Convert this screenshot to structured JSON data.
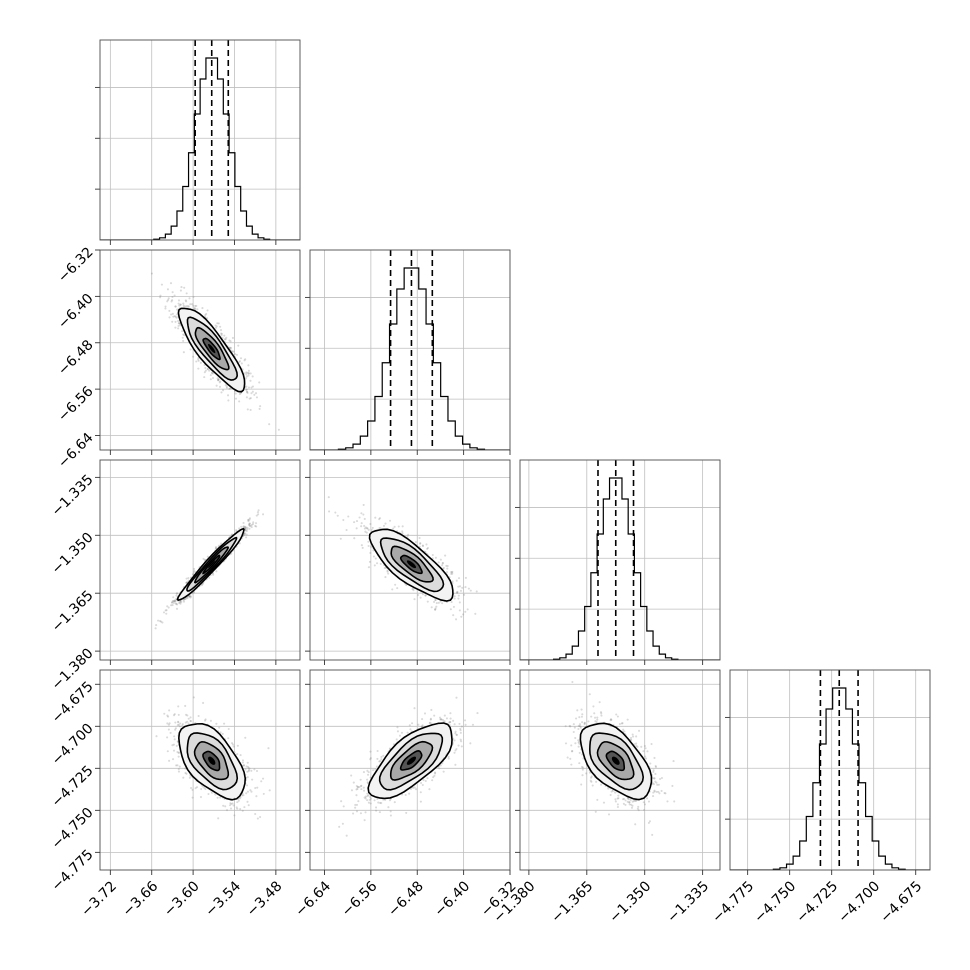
{
  "chart_data": {
    "type": "corner",
    "title": "",
    "dims": [
      {
        "label": "",
        "center": -3.573,
        "sigma": 0.024,
        "range": [
          -3.735,
          -3.445
        ],
        "ticks": [
          -3.72,
          -3.66,
          -3.6,
          -3.54,
          -3.48
        ],
        "tick_labels": [
          "−3.72",
          "−3.66",
          "−3.60",
          "−3.54",
          "−3.48"
        ],
        "quantiles": [
          -3.597,
          -3.573,
          -3.549
        ]
      },
      {
        "label": "",
        "center": -6.49,
        "sigma": 0.036,
        "range": [
          -6.665,
          -6.32
        ],
        "ticks": [
          -6.64,
          -6.56,
          -6.48,
          -6.4,
          -6.32
        ],
        "tick_labels": [
          "−6.64",
          "−6.56",
          "−6.48",
          "−6.40",
          "−6.32"
        ],
        "quantiles": [
          -6.526,
          -6.49,
          -6.454
        ]
      },
      {
        "label": "",
        "center": -1.3575,
        "sigma": 0.0046,
        "range": [
          -1.3823,
          -1.3305
        ],
        "ticks": [
          -1.38,
          -1.365,
          -1.35,
          -1.335
        ],
        "tick_labels": [
          "−1.380",
          "−1.365",
          "−1.350",
          "−1.335"
        ],
        "quantiles": [
          -1.3621,
          -1.3575,
          -1.3529
        ]
      },
      {
        "label": "",
        "center": -4.7205,
        "sigma": 0.0112,
        "range": [
          -4.7855,
          -4.6665
        ],
        "ticks": [
          -4.775,
          -4.75,
          -4.725,
          -4.7,
          -4.675
        ],
        "tick_labels": [
          "−4.775",
          "−4.750",
          "−4.725",
          "−4.700",
          "−4.675"
        ],
        "quantiles": [
          -4.7317,
          -4.7205,
          -4.7093
        ]
      }
    ],
    "correlations": [
      {
        "pair": [
          0,
          1
        ],
        "rho": -0.85
      },
      {
        "pair": [
          0,
          2
        ],
        "rho": 0.97
      },
      {
        "pair": [
          1,
          2
        ],
        "rho": -0.78
      },
      {
        "pair": [
          0,
          3
        ],
        "rho": -0.55
      },
      {
        "pair": [
          1,
          3
        ],
        "rho": 0.7
      },
      {
        "pair": [
          2,
          3
        ],
        "rho": -0.55
      }
    ],
    "histogram_bins": 20,
    "contour_levels_sigma": [
      0.5,
      1.0,
      1.5,
      2.0
    ],
    "quantile_line_style": "dashed",
    "grid": true,
    "colors": {
      "hist": "#000000",
      "contour": "#000000",
      "points": "#8c8c8c",
      "grid": "#bfbfbf"
    }
  }
}
